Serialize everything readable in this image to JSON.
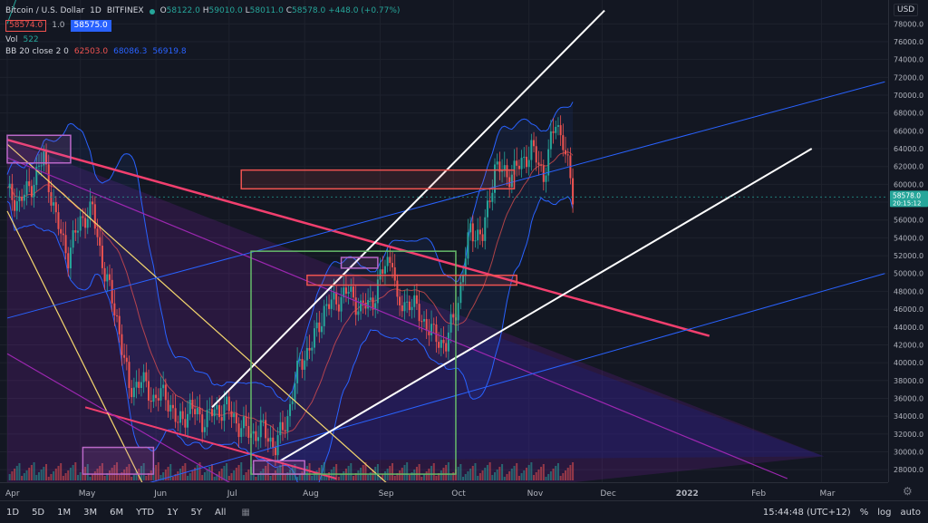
{
  "header": {
    "symbol": "Bitcoin / U.S. Dollar",
    "interval": "1D",
    "exchange": "BITFINEX",
    "open": "58122.0",
    "high": "59010.0",
    "low": "58011.0",
    "close": "58578.0",
    "change": "+448.0 (+0.77%)",
    "sell_price": "58574.0",
    "qty": "1.0",
    "buy_price": "58575.0",
    "vol_label": "Vol",
    "vol_value": "522",
    "bb_label": "BB 20 close 2 0",
    "bb_mid": "62503.0",
    "bb_upper": "68086.3",
    "bb_lower": "56919.8"
  },
  "price_scale": {
    "currency": "USD",
    "last_price": "58578.0",
    "countdown": "20:15:12"
  },
  "bottom_bar": {
    "timeframes": [
      "1D",
      "5D",
      "1M",
      "3M",
      "6M",
      "YTD",
      "1Y",
      "5Y",
      "All"
    ],
    "clock": "15:44:48 (UTC+12)",
    "percent": "%",
    "log": "log",
    "auto": "auto"
  },
  "chart_data": {
    "type": "candlestick",
    "title": "Bitcoin / U.S. Dollar",
    "ylim": [
      27000,
      80000
    ],
    "y_ticks": [
      28000,
      30000,
      32000,
      34000,
      36000,
      38000,
      40000,
      42000,
      44000,
      46000,
      48000,
      50000,
      52000,
      54000,
      56000,
      58000,
      60000,
      62000,
      64000,
      66000,
      68000,
      70000,
      72000,
      74000,
      76000,
      78000
    ],
    "x_ticks": [
      "Apr",
      "May",
      "Jun",
      "Jul",
      "Aug",
      "Sep",
      "Oct",
      "Nov",
      "Dec",
      "2022",
      "Feb",
      "Mar"
    ],
    "x_tick_days": [
      0,
      30,
      61,
      91,
      122,
      153,
      183,
      214,
      244,
      275,
      306,
      334
    ],
    "closes_approx": [
      [
        0,
        59000
      ],
      [
        5,
        58000
      ],
      [
        10,
        60000
      ],
      [
        15,
        63000
      ],
      [
        20,
        56000
      ],
      [
        25,
        52000
      ],
      [
        30,
        56000
      ],
      [
        35,
        57000
      ],
      [
        40,
        50000
      ],
      [
        45,
        45000
      ],
      [
        50,
        37000
      ],
      [
        55,
        38000
      ],
      [
        60,
        36000
      ],
      [
        65,
        36500
      ],
      [
        70,
        33000
      ],
      [
        75,
        35000
      ],
      [
        80,
        33500
      ],
      [
        85,
        34500
      ],
      [
        90,
        35000
      ],
      [
        95,
        33000
      ],
      [
        100,
        32000
      ],
      [
        105,
        32500
      ],
      [
        110,
        30500
      ],
      [
        115,
        34000
      ],
      [
        120,
        40000
      ],
      [
        125,
        42000
      ],
      [
        130,
        46000
      ],
      [
        135,
        47000
      ],
      [
        140,
        48000
      ],
      [
        145,
        46000
      ],
      [
        150,
        47000
      ],
      [
        155,
        51000
      ],
      [
        158,
        52000
      ],
      [
        160,
        46000
      ],
      [
        165,
        47000
      ],
      [
        170,
        45000
      ],
      [
        175,
        43000
      ],
      [
        180,
        42000
      ],
      [
        185,
        47000
      ],
      [
        190,
        55000
      ],
      [
        195,
        54000
      ],
      [
        200,
        62000
      ],
      [
        205,
        61000
      ],
      [
        210,
        62000
      ],
      [
        215,
        64000
      ],
      [
        220,
        61000
      ],
      [
        225,
        67000
      ],
      [
        228,
        65000
      ],
      [
        232,
        58578
      ]
    ]
  },
  "colors": {
    "background": "#131722",
    "up": "#26a69a",
    "down": "#ef5350",
    "bb_band": "#2962ff",
    "trend_pink": "#f23f6e",
    "trend_white": "#ffffff",
    "trend_yellow": "#f5d76e",
    "trend_purple": "#9c27b0",
    "box_green": "#66bb6a"
  }
}
